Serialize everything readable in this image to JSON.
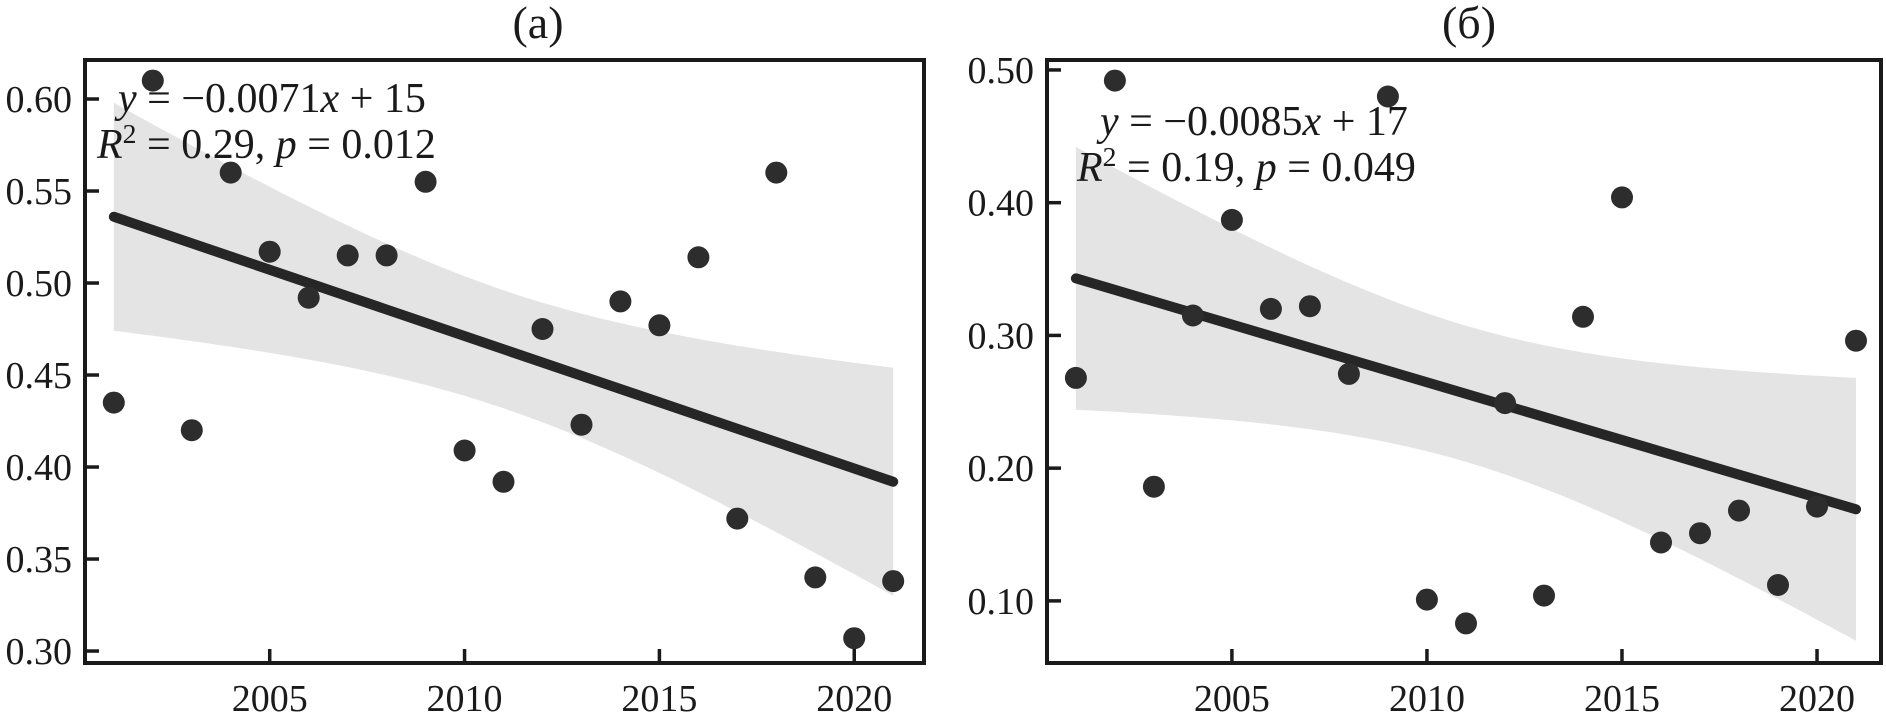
{
  "figure": {
    "colors": {
      "background": "#ffffff",
      "band": "#e4e4e4",
      "line": "#262626",
      "point": "#2d2d2d",
      "axis": "#1a1a1a",
      "text": "#1a1a1a"
    }
  },
  "chart_data": [
    {
      "type": "scatter",
      "title": "(а)",
      "xlabel": "",
      "ylabel": "",
      "grid": false,
      "x": [
        2001,
        2002,
        2003,
        2004,
        2005,
        2006,
        2007,
        2008,
        2009,
        2010,
        2011,
        2012,
        2013,
        2014,
        2015,
        2016,
        2017,
        2018,
        2019,
        2020,
        2021
      ],
      "values": [
        0.435,
        0.61,
        0.42,
        0.56,
        0.517,
        0.492,
        0.515,
        0.515,
        0.555,
        0.409,
        0.392,
        0.475,
        0.423,
        0.49,
        0.477,
        0.514,
        0.372,
        0.56,
        0.34,
        0.307,
        0.338
      ],
      "regression": {
        "x_start": 2001,
        "y_start": 0.536,
        "x_end": 2021,
        "y_end": 0.392,
        "slope": -0.0071,
        "intercept": 15
      },
      "ci_band": {
        "scale": 0.147,
        "n": 21,
        "x_mean": 2011,
        "sxx": 770
      },
      "annotation": {
        "plain": "y = −0.0071x + 15 ; R² = 0.29, p = 0.012",
        "lines": [
          [
            {
              "t": "y",
              "i": true
            },
            {
              "t": " = −0.0071"
            },
            {
              "t": "x",
              "i": true
            },
            {
              "t": " + 15"
            }
          ],
          [
            {
              "t": "R",
              "i": true
            },
            {
              "t": "2",
              "sup": true
            },
            {
              "t": " = 0.29, "
            },
            {
              "t": "p",
              "i": true
            },
            {
              "t": " = 0.012"
            }
          ]
        ]
      },
      "xlim": [
        2000.26,
        2021.79
      ],
      "ylim": [
        0.2935,
        0.6212
      ],
      "x_ticks": [
        2005,
        2010,
        2015,
        2020
      ],
      "x_tick_labels": [
        "2005",
        "2010",
        "2015",
        "2020"
      ],
      "y_ticks": [
        0.3,
        0.35,
        0.4,
        0.45,
        0.5,
        0.55,
        0.6
      ],
      "y_tick_labels": [
        "0.30",
        "0.35",
        "0.40",
        "0.45",
        "0.50",
        "0.55",
        "0.60"
      ]
    },
    {
      "type": "scatter",
      "title": "(б)",
      "xlabel": "",
      "ylabel": "",
      "grid": false,
      "x": [
        2001,
        2002,
        2003,
        2004,
        2005,
        2006,
        2007,
        2008,
        2009,
        2010,
        2011,
        2012,
        2013,
        2014,
        2015,
        2016,
        2017,
        2018,
        2019,
        2020,
        2021
      ],
      "values": [
        0.268,
        0.492,
        0.186,
        0.315,
        0.387,
        0.32,
        0.322,
        0.271,
        0.48,
        0.101,
        0.083,
        0.249,
        0.104,
        0.314,
        0.404,
        0.144,
        0.151,
        0.168,
        0.112,
        0.171,
        0.296
      ],
      "regression": {
        "x_start": 2001,
        "y_start": 0.343,
        "x_end": 2021,
        "y_end": 0.169,
        "slope": -0.0085,
        "intercept": 17
      },
      "ci_band": {
        "scale": 0.235,
        "n": 21,
        "x_mean": 2011,
        "sxx": 770
      },
      "annotation": {
        "plain": "y = −0.0085x + 17 ; R² = 0.19, p = 0.049",
        "lines": [
          [
            {
              "t": "y",
              "i": true
            },
            {
              "t": " = −0.0085"
            },
            {
              "t": "x",
              "i": true
            },
            {
              "t": " + 17"
            }
          ],
          [
            {
              "t": "R",
              "i": true
            },
            {
              "t": "2",
              "sup": true
            },
            {
              "t": " = 0.19, "
            },
            {
              "t": "p",
              "i": true
            },
            {
              "t": " = 0.049"
            }
          ]
        ]
      },
      "xlim": [
        2000.26,
        2021.64
      ],
      "ylim": [
        0.0532,
        0.5075
      ],
      "x_ticks": [
        2005,
        2010,
        2015,
        2020
      ],
      "x_tick_labels": [
        "2005",
        "2010",
        "2015",
        "2020"
      ],
      "y_ticks": [
        0.1,
        0.2,
        0.3,
        0.4,
        0.5
      ],
      "y_tick_labels": [
        "0.10",
        "0.20",
        "0.30",
        "0.40",
        "0.50"
      ]
    }
  ]
}
